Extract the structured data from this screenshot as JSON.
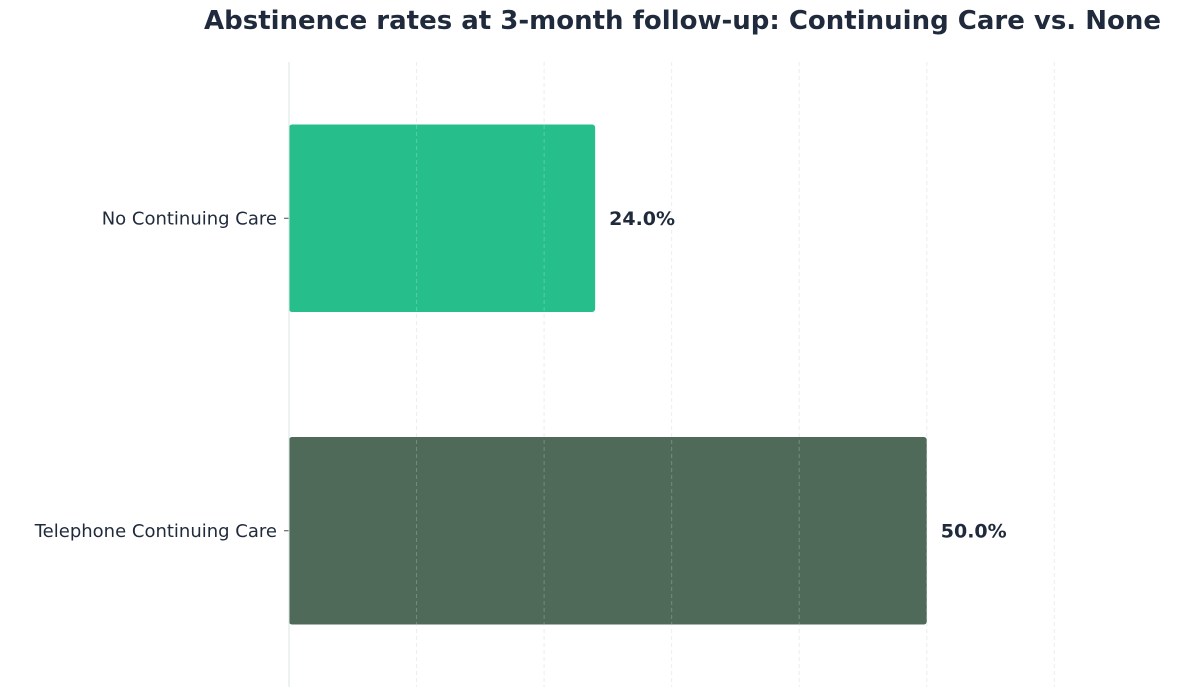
{
  "chart_data": {
    "type": "bar",
    "orientation": "horizontal",
    "title": "Abstinence rates at 3-month follow-up: Continuing Care vs. None",
    "xlabel": "",
    "ylabel": "",
    "categories": [
      "No Continuing Care",
      "Telephone Continuing Care"
    ],
    "values": [
      24.0,
      50.0
    ],
    "data_labels": [
      "24.0%",
      "50.0%"
    ],
    "colors": [
      "#26bf8c",
      "#506a59"
    ],
    "xlim": [
      0,
      67.5
    ],
    "grid": "x-axis, dashed",
    "legend": "none",
    "x_tick_labels_visible": false
  }
}
